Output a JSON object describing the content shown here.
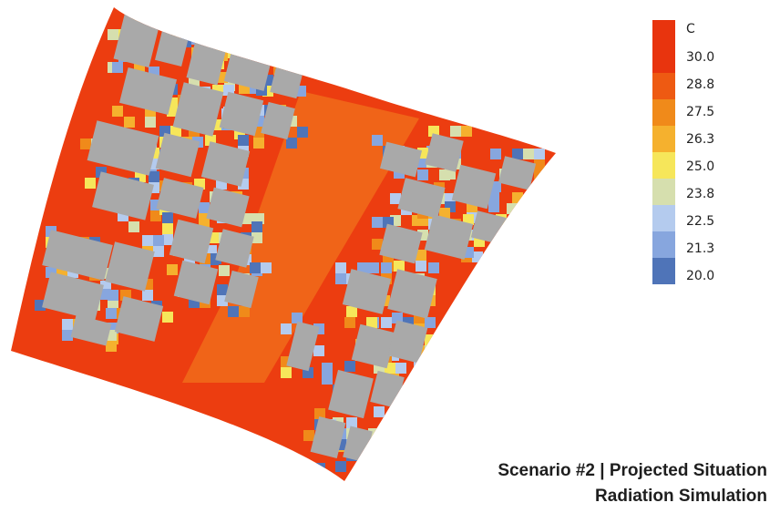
{
  "legend": {
    "unit": "C",
    "labels": [
      "30.0",
      "28.8",
      "27.5",
      "26.3",
      "25.0",
      "23.8",
      "22.5",
      "21.3",
      "20.0"
    ],
    "colors": [
      "#e8340e",
      "#ee5a12",
      "#f08a1a",
      "#f5b12e",
      "#f6e65a",
      "#d6dfae",
      "#b4cbee",
      "#87a6de",
      "#4f74b8"
    ]
  },
  "caption": {
    "line1": "Scenario #2  |  Projected Situation",
    "line2": "Radiation Simulation"
  },
  "map": {
    "building_color": "#a9a9a9",
    "hot_color": "#ec3d10",
    "corridor_color": "#f06418"
  }
}
